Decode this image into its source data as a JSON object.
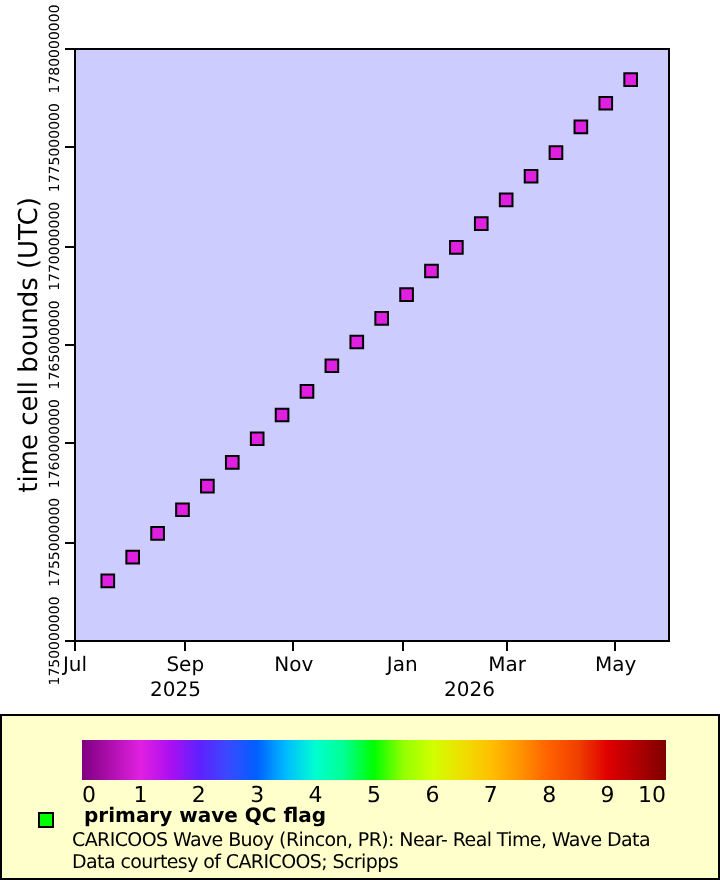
{
  "chart_data": {
    "type": "scatter",
    "ylabel": "time cell bounds (UTC)",
    "clabel": "primary wave QC flag",
    "x": [
      "2025-07-20",
      "2025-08-03",
      "2025-08-17",
      "2025-08-31",
      "2025-09-14",
      "2025-09-28",
      "2025-10-12",
      "2025-10-26",
      "2025-11-09",
      "2025-11-23",
      "2025-12-07",
      "2025-12-21",
      "2026-01-04",
      "2026-01-18",
      "2026-02-01",
      "2026-02-15",
      "2026-03-01",
      "2026-03-15",
      "2026-03-29",
      "2026-04-12",
      "2026-04-26",
      "2026-05-10"
    ],
    "series": [
      {
        "color": "#000000",
        "values": [
          1753000000,
          1754200000,
          1755400000,
          1756600000,
          1757800000,
          1759000000,
          1760200000,
          1761400000,
          1762600000,
          1763900000,
          1765100000,
          1766300000,
          1767500000,
          1768700000,
          1769900000,
          1771100000,
          1772300000,
          1773500000,
          1774700000,
          1776000000,
          1777200000,
          1778400000
        ],
        "cvalues": [
          1,
          1,
          1,
          1,
          1,
          1,
          1,
          1,
          1,
          1,
          1,
          1,
          1,
          1,
          1,
          1,
          1,
          1,
          1,
          1,
          1,
          1
        ]
      }
    ],
    "marker": "square",
    "xlim": [
      "2025-07-01",
      "2026-05-31"
    ],
    "xticks": [
      {
        "value": "2025-07-01",
        "label": "Jul"
      },
      {
        "value": "2025-09-01",
        "label": "Sep"
      },
      {
        "value": "2025-11-01",
        "label": "Nov"
      },
      {
        "value": "2026-01-01",
        "label": "Jan"
      },
      {
        "value": "2026-03-01",
        "label": "Mar"
      },
      {
        "value": "2026-05-01",
        "label": "May"
      }
    ],
    "ylim": [
      1750000000,
      1780000000
    ],
    "yticks": [
      1750000000,
      1755000000,
      1760000000,
      1765000000,
      1770000000,
      1775000000,
      1780000000
    ],
    "clim": [
      0,
      10
    ],
    "cticks": [
      0,
      1,
      2,
      3,
      4,
      5,
      6,
      7,
      8,
      9,
      10
    ],
    "grid": false,
    "annotations": [
      "2025",
      "2026",
      "CARICOOS Wave Buoy (Rincon, PR): Near- Real Time, Wave Data",
      "Data courtesy of CARICOOS; Scripps"
    ]
  }
}
